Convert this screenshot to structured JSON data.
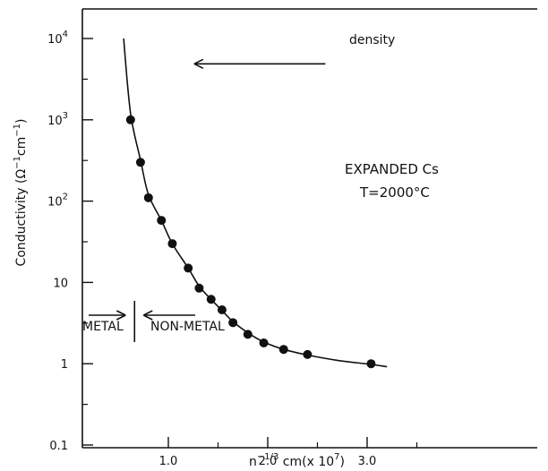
{
  "chart_data": {
    "type": "scatter",
    "title": "",
    "xlabel": "n⁻¹ᐟ³ cm(x 10⁷)",
    "xlabel_parts": {
      "base": "n",
      "exp": "−1/3",
      "rest": " cm(x 10",
      "rest_exp": "7",
      "close": ")"
    },
    "ylabel": "Conductivity (Ω⁻¹cm⁻¹)",
    "ylabel_parts": {
      "a": "Conductivity (Ω",
      "e1": "−1",
      "b": "cm",
      "e2": "−1",
      "c": ")"
    },
    "yscale": "log",
    "xlim": [
      0.0,
      3.6
    ],
    "ylim": [
      0.1,
      10000
    ],
    "x_ticks": [
      {
        "value": 1.0,
        "label": "1.0"
      },
      {
        "value": 2.0,
        "label": "2.0"
      },
      {
        "value": 3.0,
        "label": "3.0"
      }
    ],
    "y_ticks": [
      {
        "value": 10000,
        "label": "10",
        "exp": "4"
      },
      {
        "value": 1000,
        "label": "10",
        "exp": "3"
      },
      {
        "value": 100,
        "label": "10",
        "exp": "2"
      },
      {
        "value": 10,
        "label": "10",
        "exp": ""
      },
      {
        "value": 1,
        "label": "1",
        "exp": ""
      },
      {
        "value": 0.1,
        "label": "0.1",
        "exp": ""
      }
    ],
    "grid": false,
    "points": [
      {
        "x": 0.62,
        "y": 1000
      },
      {
        "x": 0.72,
        "y": 300
      },
      {
        "x": 0.8,
        "y": 110
      },
      {
        "x": 0.93,
        "y": 58
      },
      {
        "x": 1.04,
        "y": 30
      },
      {
        "x": 1.2,
        "y": 15
      },
      {
        "x": 1.31,
        "y": 8.5
      },
      {
        "x": 1.43,
        "y": 6.2
      },
      {
        "x": 1.54,
        "y": 4.6
      },
      {
        "x": 1.65,
        "y": 3.2
      },
      {
        "x": 1.8,
        "y": 2.3
      },
      {
        "x": 1.96,
        "y": 1.8
      },
      {
        "x": 2.16,
        "y": 1.5
      },
      {
        "x": 2.4,
        "y": 1.3
      },
      {
        "x": 3.04,
        "y": 1.0
      }
    ],
    "fit_curve": [
      {
        "x": 0.55,
        "y": 10000
      },
      {
        "x": 0.62,
        "y": 1200
      },
      {
        "x": 0.72,
        "y": 320
      },
      {
        "x": 0.8,
        "y": 120
      },
      {
        "x": 0.93,
        "y": 58
      },
      {
        "x": 1.04,
        "y": 30
      },
      {
        "x": 1.2,
        "y": 15
      },
      {
        "x": 1.31,
        "y": 9
      },
      {
        "x": 1.43,
        "y": 6.2
      },
      {
        "x": 1.54,
        "y": 4.5
      },
      {
        "x": 1.65,
        "y": 3.3
      },
      {
        "x": 1.8,
        "y": 2.4
      },
      {
        "x": 1.96,
        "y": 1.85
      },
      {
        "x": 2.16,
        "y": 1.5
      },
      {
        "x": 2.4,
        "y": 1.28
      },
      {
        "x": 2.7,
        "y": 1.1
      },
      {
        "x": 3.04,
        "y": 0.98
      },
      {
        "x": 3.2,
        "y": 0.92
      }
    ],
    "annotations": {
      "density_label": "density",
      "density_arrow_from_x": 2.58,
      "density_arrow_to_x": 1.26,
      "density_arrow_y": 5000,
      "sample": "EXPANDED Cs",
      "temperature": "T=2000°C",
      "metal": "METAL",
      "non_metal": "NON-METAL",
      "transition_x": 0.66
    }
  }
}
